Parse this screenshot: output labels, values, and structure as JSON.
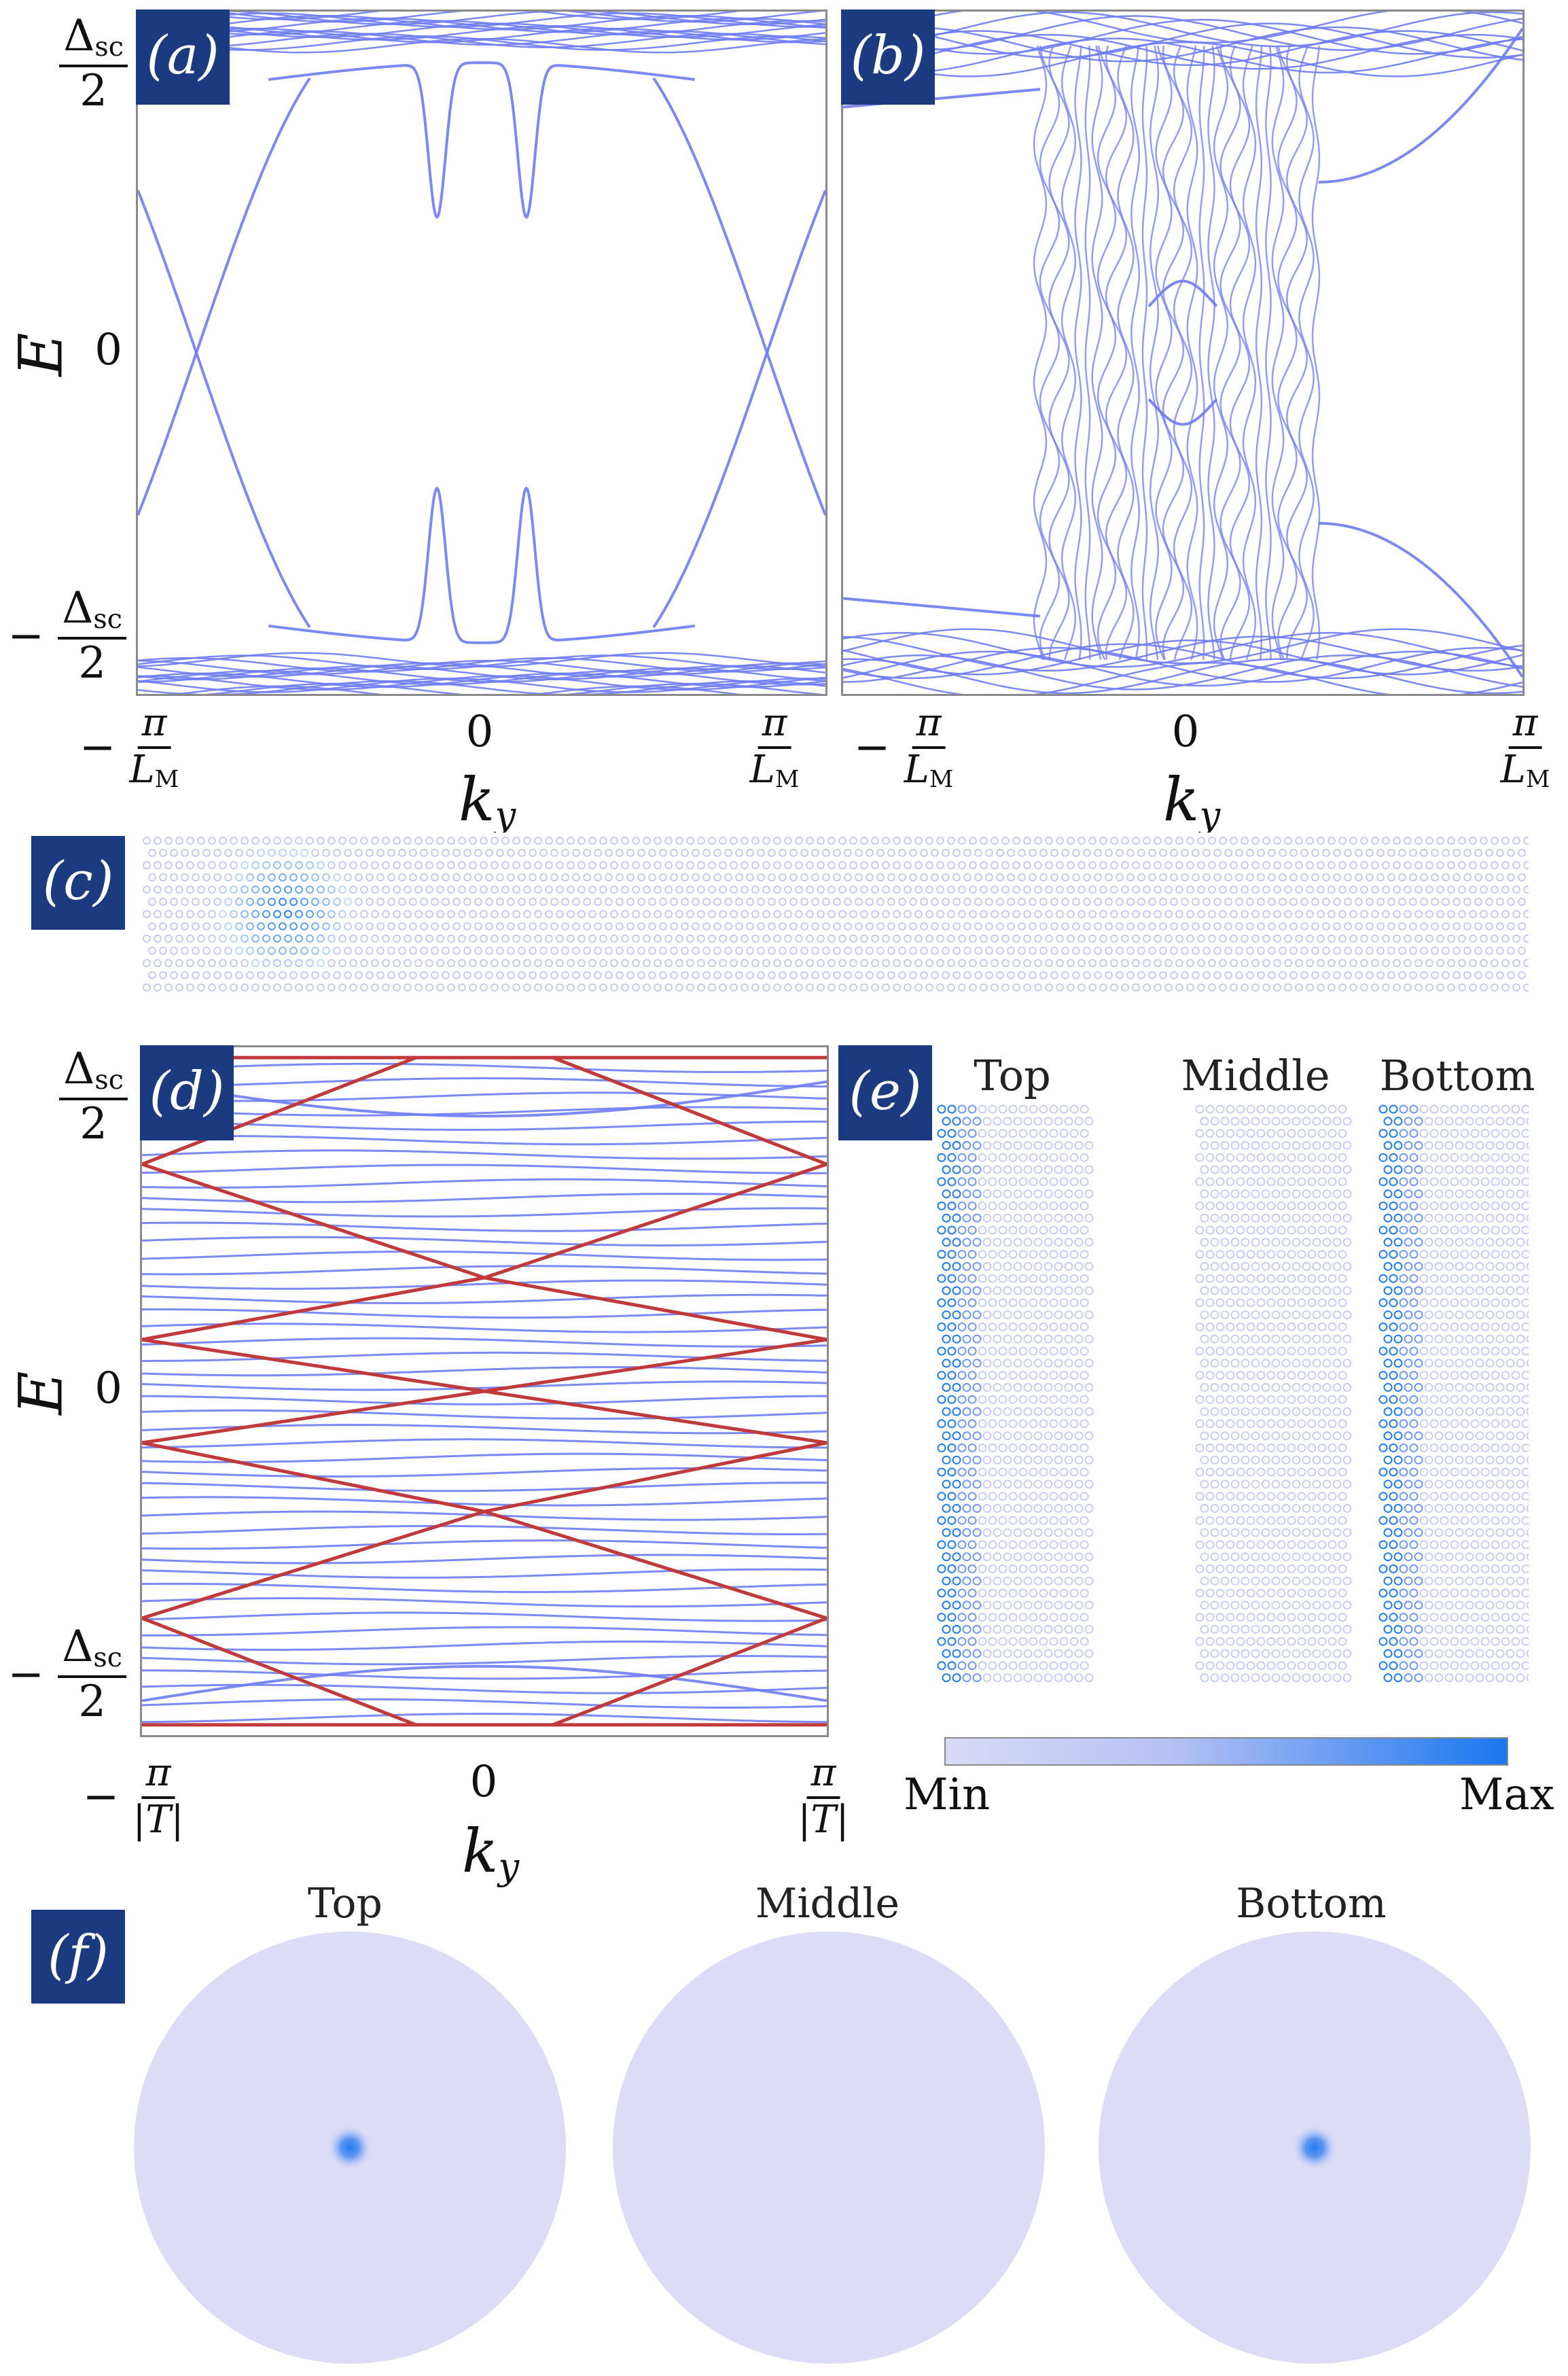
{
  "panels": {
    "a": {
      "label": "(a)"
    },
    "b": {
      "label": "(b)"
    },
    "c": {
      "label": "(c)"
    },
    "d": {
      "label": "(d)"
    },
    "e": {
      "label": "(e)"
    },
    "f": {
      "label": "(f)"
    }
  },
  "axes": {
    "y_title": "E",
    "y_top_num": "Δ",
    "y_top_sub": "sc",
    "y_top_den": "2",
    "y_zero": "0",
    "y_minus": "−",
    "x_title": "k",
    "x_title_sub": "y",
    "x_left_sign": "−",
    "x_pi": "π",
    "x_L": "L",
    "x_L_sub": "M",
    "x_zero": "0",
    "x_T": "|T|"
  },
  "panel_e": {
    "titles": [
      "Top",
      "Middle",
      "Bottom"
    ],
    "colorbar_min": "Min",
    "colorbar_max": "Max"
  },
  "panel_f": {
    "titles": [
      "Top",
      "Middle",
      "Bottom"
    ]
  },
  "colors": {
    "band_blue": "#6f7cf2",
    "band_red": "#c0393b",
    "badge_bg": "#1b3a80",
    "lattice_light": "#c7cbf4",
    "density_max": "#1f7cf0",
    "disk_fill": "#dcdcf7"
  },
  "chart_data": [
    {
      "type": "line",
      "panel": "a",
      "xlabel": "k_y",
      "ylabel": "E",
      "xticks": [
        "−π/L_M",
        "0",
        "π/L_M"
      ],
      "yticks": [
        "−Δsc/2",
        "0",
        "Δsc/2"
      ],
      "xlim": [
        -1,
        1
      ],
      "ylim": [
        -1,
        1
      ],
      "unit_note": "x in units of π/L_M, y in units of Δsc/2"
    },
    {
      "type": "line",
      "panel": "b",
      "xlabel": "k_y",
      "xticks": [
        "−π/L_M",
        "0",
        "π/L_M"
      ],
      "xlim": [
        -1,
        1
      ],
      "ylim": [
        -1,
        1
      ]
    },
    {
      "type": "line",
      "panel": "d",
      "xlabel": "k_y",
      "ylabel": "E",
      "xticks": [
        "−π/|T|",
        "0",
        "π/|T|"
      ],
      "yticks": [
        "−Δsc/2",
        "0",
        "Δsc/2"
      ],
      "xlim": [
        -1,
        1
      ],
      "ylim": [
        -1,
        1
      ],
      "series": [
        {
          "color": "blue"
        },
        {
          "color": "red"
        }
      ]
    }
  ]
}
